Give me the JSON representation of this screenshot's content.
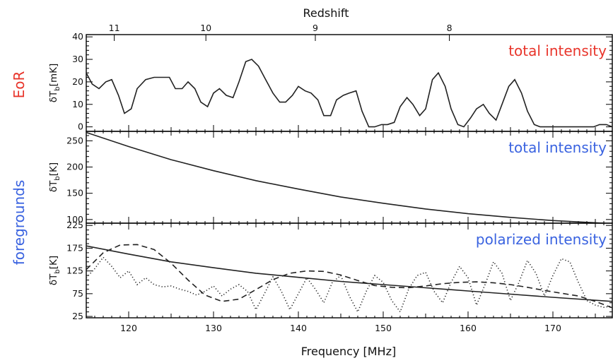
{
  "figure": {
    "top_axis_title": "Redshift",
    "bottom_axis_title": "Frequency [MHz]",
    "side_labels": [
      {
        "text": "EoR",
        "color": "#e8352b"
      },
      {
        "text": "foregrounds",
        "color": "#3a63e0"
      }
    ]
  },
  "chart_data": [
    {
      "type": "line",
      "panel": "eor",
      "annotation": "total intensity",
      "annotation_color": "#e8352b",
      "ylabel": "δT_b[mK]",
      "xlim": [
        115,
        177
      ],
      "ylim": [
        -2,
        41
      ],
      "yticks": [
        0,
        10,
        20,
        30,
        40
      ],
      "xticks": [
        120,
        130,
        140,
        150,
        160,
        170
      ],
      "top_ticks": [
        {
          "label": "11",
          "freq": 118.3
        },
        {
          "label": "10",
          "freq": 129.1
        },
        {
          "label": "9",
          "freq": 142.0
        },
        {
          "label": "8",
          "freq": 157.8
        }
      ],
      "series": [
        {
          "style": "solid",
          "x": [
            115,
            115.7,
            116.5,
            117.3,
            118.0,
            118.8,
            119.5,
            120.3,
            121.0,
            122.0,
            123.0,
            124.0,
            124.8,
            125.5,
            126.3,
            127.0,
            127.8,
            128.5,
            129.3,
            130.0,
            130.7,
            131.5,
            132.3,
            133.0,
            133.8,
            134.5,
            135.3,
            136.0,
            137.0,
            137.8,
            138.5,
            139.3,
            140.0,
            140.8,
            141.5,
            142.3,
            143.0,
            143.8,
            144.5,
            145.3,
            146.0,
            146.8,
            147.5,
            148.3,
            149.0,
            149.8,
            150.5,
            151.3,
            152.0,
            152.8,
            153.5,
            154.3,
            155.0,
            155.8,
            156.5,
            157.3,
            158.0,
            158.8,
            159.5,
            160.3,
            161.0,
            161.8,
            162.5,
            163.3,
            164.0,
            164.8,
            165.5,
            166.3,
            167.0,
            167.8,
            168.5,
            169.3,
            170.0,
            171.0,
            172.0,
            173.0,
            174.0,
            174.8,
            175.5,
            176.3,
            177.0
          ],
          "y": [
            24,
            19,
            17,
            20,
            21,
            14,
            6,
            8,
            17,
            21,
            22,
            22,
            22,
            17,
            17,
            20,
            17,
            11,
            9,
            15,
            17,
            14,
            13,
            20,
            29,
            30,
            27,
            22,
            15,
            11,
            11,
            14,
            18,
            16,
            15,
            12,
            5,
            5,
            12,
            14,
            15,
            16,
            7,
            0,
            0,
            1,
            1,
            2,
            9,
            13,
            10,
            5,
            8,
            21,
            24,
            18,
            8,
            1,
            0,
            4,
            8,
            10,
            6,
            3,
            10,
            18,
            21,
            15,
            7,
            1,
            0,
            0,
            0,
            0,
            0,
            0,
            0,
            0,
            1,
            1,
            0
          ]
        }
      ]
    },
    {
      "type": "line",
      "panel": "foreground-total",
      "annotation": "total intensity",
      "annotation_color": "#3a63e0",
      "ylabel": "δT_b[K]",
      "xlim": [
        115,
        177
      ],
      "ylim": [
        93,
        268
      ],
      "yticks": [
        100,
        150,
        200,
        250
      ],
      "xticks": [
        120,
        130,
        140,
        150,
        160,
        170
      ],
      "series": [
        {
          "style": "solid",
          "x": [
            115,
            120,
            125,
            130,
            135,
            140,
            145,
            150,
            155,
            160,
            165,
            170,
            177
          ],
          "y": [
            266,
            239,
            214,
            193,
            174,
            158,
            143,
            131,
            120,
            111,
            104,
            98,
            92
          ]
        }
      ]
    },
    {
      "type": "line",
      "panel": "foreground-polarized",
      "annotation": "polarized intensity",
      "annotation_color": "#3a63e0",
      "ylabel": "δT_b[K]",
      "xlim": [
        115,
        177
      ],
      "ylim": [
        22,
        230
      ],
      "yticks": [
        25,
        75,
        125,
        175,
        225
      ],
      "xticks": [
        120,
        130,
        140,
        150,
        160,
        170
      ],
      "series": [
        {
          "style": "solid",
          "x": [
            115,
            120,
            125,
            130,
            135,
            140,
            145,
            150,
            155,
            160,
            165,
            170,
            177
          ],
          "y": [
            180,
            162,
            145,
            132,
            120,
            111,
            102,
            95,
            88,
            81,
            74,
            67,
            58
          ]
        },
        {
          "style": "dashed",
          "x": [
            115,
            117,
            119,
            121,
            123,
            125,
            127,
            129,
            131,
            133,
            135,
            137,
            139,
            141,
            143,
            145,
            147,
            149,
            151,
            153,
            155,
            157,
            159,
            161,
            163,
            165,
            167,
            169,
            171,
            173,
            175,
            177
          ],
          "y": [
            128,
            165,
            182,
            183,
            172,
            142,
            105,
            72,
            58,
            63,
            84,
            106,
            120,
            125,
            124,
            116,
            104,
            93,
            89,
            88,
            92,
            97,
            100,
            101,
            99,
            95,
            89,
            82,
            76,
            70,
            58,
            44
          ]
        },
        {
          "style": "dotted",
          "x": [
            115,
            116,
            117,
            118,
            119,
            120,
            121,
            122,
            123,
            124,
            125,
            126,
            127,
            128,
            129,
            130,
            131,
            132,
            133,
            134,
            135,
            136,
            137,
            138,
            139,
            140,
            141,
            142,
            143,
            144,
            145,
            146,
            147,
            148,
            149,
            150,
            151,
            152,
            153,
            154,
            155,
            156,
            157,
            158,
            159,
            160,
            161,
            162,
            163,
            164,
            165,
            166,
            167,
            168,
            169,
            170,
            171,
            172,
            173,
            174,
            175,
            176,
            177
          ],
          "y": [
            110,
            130,
            155,
            135,
            110,
            125,
            95,
            110,
            95,
            90,
            92,
            85,
            80,
            72,
            80,
            92,
            70,
            85,
            95,
            80,
            40,
            75,
            112,
            80,
            40,
            75,
            110,
            85,
            55,
            100,
            115,
            70,
            35,
            80,
            115,
            100,
            60,
            35,
            85,
            115,
            122,
            80,
            55,
            100,
            135,
            110,
            50,
            95,
            145,
            120,
            60,
            100,
            148,
            120,
            70,
            115,
            152,
            145,
            100,
            60,
            50,
            45,
            48
          ]
        }
      ]
    }
  ]
}
